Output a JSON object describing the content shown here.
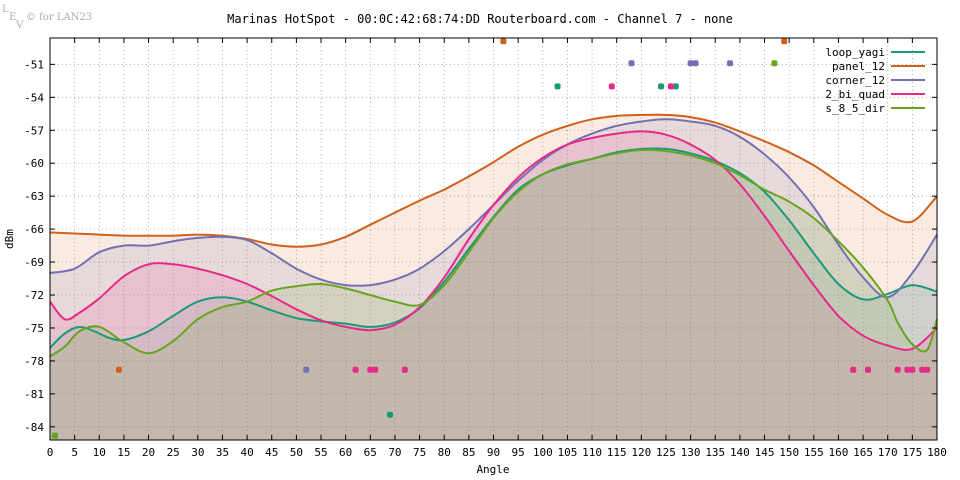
{
  "watermark": {
    "letters": "LEV",
    "text": "© for LAN23"
  },
  "chart_data": {
    "type": "line",
    "title": "Marinas HotSpot - 00:0C:42:68:74:DD Routerboard.com - Channel 7 - none",
    "xlabel": "Angle",
    "ylabel": "dBm",
    "xlim": [
      0,
      180
    ],
    "ylim": [
      -85.2,
      -48.6
    ],
    "xticks": [
      0,
      5,
      10,
      15,
      20,
      25,
      30,
      35,
      40,
      45,
      50,
      55,
      60,
      65,
      70,
      75,
      80,
      85,
      90,
      95,
      100,
      105,
      110,
      115,
      120,
      125,
      130,
      135,
      140,
      145,
      150,
      155,
      160,
      165,
      170,
      175,
      180
    ],
    "yticks": [
      -51,
      -54,
      -57,
      -60,
      -63,
      -66,
      -69,
      -72,
      -75,
      -78,
      -81,
      -84
    ],
    "grid": true,
    "legend_position": "top-right",
    "series": [
      {
        "name": "loop_yagi",
        "color": "#1a9a7a",
        "x": [
          0,
          3,
          6,
          9,
          12,
          15,
          20,
          25,
          30,
          35,
          40,
          45,
          50,
          55,
          60,
          65,
          70,
          75,
          80,
          85,
          90,
          95,
          100,
          105,
          110,
          115,
          120,
          125,
          130,
          135,
          140,
          145,
          150,
          155,
          160,
          165,
          170,
          175,
          180
        ],
        "y": [
          -76.8,
          -75.5,
          -74.9,
          -75.3,
          -75.9,
          -76.1,
          -75.3,
          -73.9,
          -72.6,
          -72.2,
          -72.6,
          -73.4,
          -74.1,
          -74.4,
          -74.6,
          -74.9,
          -74.5,
          -73.2,
          -70.8,
          -67.8,
          -64.9,
          -62.4,
          -61.0,
          -60.2,
          -59.6,
          -59.0,
          -58.7,
          -58.7,
          -59.1,
          -59.8,
          -60.9,
          -62.6,
          -65.2,
          -68.2,
          -71.0,
          -72.4,
          -71.9,
          -71.1,
          -71.7
        ],
        "markers_x": [
          1,
          103,
          124,
          126,
          127,
          69
        ],
        "markers_y": [
          -84.8,
          -53.0,
          -53.0,
          -53.0,
          -53.0,
          -82.9
        ]
      },
      {
        "name": "panel_12",
        "color": "#d0611a",
        "x": [
          0,
          5,
          10,
          15,
          20,
          25,
          30,
          35,
          40,
          45,
          50,
          55,
          60,
          65,
          70,
          75,
          80,
          85,
          90,
          95,
          100,
          105,
          110,
          115,
          120,
          125,
          130,
          135,
          140,
          145,
          150,
          155,
          160,
          165,
          170,
          175,
          180
        ],
        "y": [
          -66.3,
          -66.4,
          -66.5,
          -66.6,
          -66.6,
          -66.6,
          -66.5,
          -66.6,
          -66.9,
          -67.4,
          -67.6,
          -67.4,
          -66.7,
          -65.6,
          -64.5,
          -63.4,
          -62.4,
          -61.2,
          -59.9,
          -58.5,
          -57.4,
          -56.6,
          -56.0,
          -55.7,
          -55.6,
          -55.6,
          -55.8,
          -56.3,
          -57.1,
          -58.0,
          -59.0,
          -60.2,
          -61.7,
          -63.2,
          -64.7,
          -65.3,
          -63.0
        ],
        "markers_x": [
          14,
          92,
          149
        ],
        "markers_y": [
          -78.8,
          -48.9,
          -48.9
        ]
      },
      {
        "name": "corner_12",
        "color": "#7570b3",
        "x": [
          0,
          5,
          10,
          15,
          20,
          25,
          30,
          35,
          40,
          45,
          50,
          55,
          60,
          65,
          70,
          75,
          80,
          85,
          90,
          95,
          100,
          105,
          110,
          115,
          120,
          125,
          130,
          135,
          140,
          145,
          150,
          155,
          160,
          165,
          170,
          175,
          180
        ],
        "y": [
          -70.0,
          -69.6,
          -68.1,
          -67.5,
          -67.5,
          -67.1,
          -66.8,
          -66.7,
          -67.0,
          -68.2,
          -69.6,
          -70.6,
          -71.1,
          -71.1,
          -70.6,
          -69.6,
          -68.0,
          -66.0,
          -63.8,
          -61.6,
          -59.7,
          -58.3,
          -57.3,
          -56.6,
          -56.2,
          -56.0,
          -56.2,
          -56.6,
          -57.6,
          -59.2,
          -61.3,
          -64.0,
          -67.4,
          -70.4,
          -72.2,
          -70.0,
          -66.5
        ],
        "markers_x": [
          52,
          118,
          130,
          131,
          138
        ],
        "markers_y": [
          -78.8,
          -50.9,
          -50.9,
          -50.9,
          -50.9
        ]
      },
      {
        "name": "2_bi_quad",
        "color": "#e7298a",
        "x": [
          0,
          3,
          6,
          10,
          15,
          20,
          25,
          30,
          35,
          40,
          45,
          50,
          55,
          60,
          65,
          70,
          75,
          80,
          85,
          90,
          95,
          100,
          105,
          110,
          115,
          120,
          125,
          130,
          135,
          140,
          145,
          150,
          155,
          160,
          165,
          170,
          175,
          180
        ],
        "y": [
          -72.6,
          -74.2,
          -73.6,
          -72.3,
          -70.3,
          -69.2,
          -69.2,
          -69.6,
          -70.2,
          -71.0,
          -72.1,
          -73.3,
          -74.3,
          -74.9,
          -75.2,
          -74.7,
          -73.1,
          -70.4,
          -66.9,
          -63.8,
          -61.3,
          -59.5,
          -58.3,
          -57.7,
          -57.3,
          -57.1,
          -57.4,
          -58.3,
          -59.7,
          -61.9,
          -64.8,
          -68.0,
          -71.1,
          -73.9,
          -75.7,
          -76.6,
          -76.9,
          -75.0
        ],
        "markers_x": [
          62,
          65,
          66,
          72,
          114,
          126,
          163,
          166,
          172,
          174,
          175,
          177,
          178
        ],
        "markers_y": [
          -78.8,
          -78.8,
          -78.8,
          -78.8,
          -53.0,
          -53.0,
          -78.8,
          -78.8,
          -78.8,
          -78.8,
          -78.8,
          -78.8,
          -78.8
        ]
      },
      {
        "name": "s_8_5_dir",
        "color": "#66a61e",
        "x": [
          0,
          3,
          6,
          10,
          15,
          20,
          25,
          30,
          35,
          40,
          45,
          50,
          55,
          60,
          65,
          70,
          75,
          80,
          85,
          90,
          95,
          100,
          105,
          110,
          115,
          120,
          125,
          130,
          135,
          140,
          145,
          150,
          155,
          160,
          165,
          170,
          172,
          175,
          178,
          180
        ],
        "y": [
          -77.6,
          -76.7,
          -75.3,
          -74.9,
          -76.3,
          -77.3,
          -76.2,
          -74.2,
          -73.1,
          -72.6,
          -71.6,
          -71.2,
          -71.0,
          -71.4,
          -72.0,
          -72.6,
          -72.9,
          -71.1,
          -68.1,
          -65.0,
          -62.6,
          -61.0,
          -60.1,
          -59.6,
          -59.1,
          -58.8,
          -58.9,
          -59.3,
          -60.0,
          -61.1,
          -62.4,
          -63.5,
          -65.0,
          -67.1,
          -69.5,
          -72.5,
          -74.5,
          -76.5,
          -77.0,
          -74.2
        ],
        "markers_x": [
          1,
          147
        ],
        "markers_y": [
          -84.8,
          -50.9
        ]
      }
    ]
  }
}
